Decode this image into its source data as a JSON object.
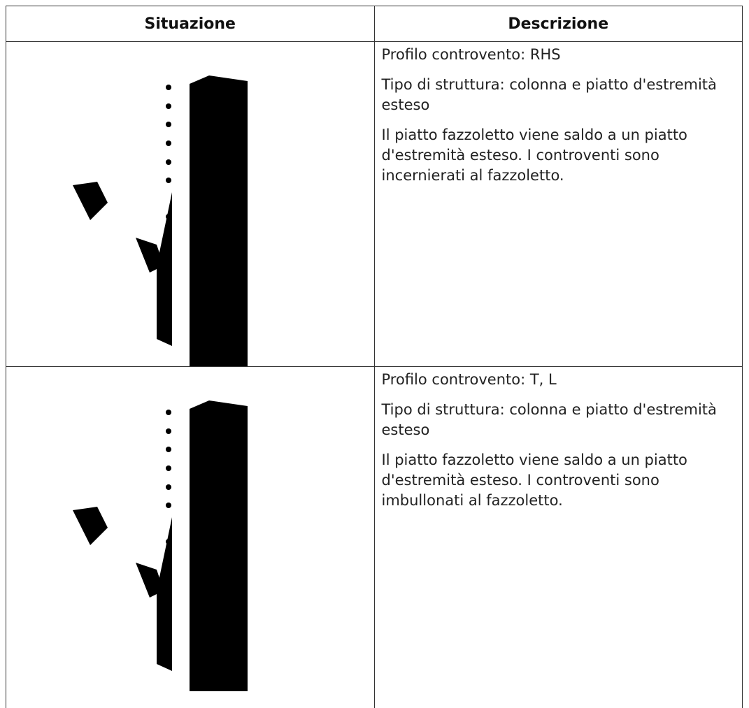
{
  "table": {
    "headers": [
      "Situazione",
      "Descrizione"
    ],
    "rows": [
      {
        "description": [
          "Profilo controvento: RHS",
          "Tipo di struttura: colonna e piatto d'estremità esteso",
          "Il piatto fazzoletto viene saldo a un piatto d'estremità esteso. I controventi sono incernierati al fazzoletto."
        ]
      },
      {
        "description": [
          "Profilo controvento: T, L",
          "Tipo di struttura: colonna e piatto d'estremità esteso",
          "Il piatto fazzoletto viene saldo a un piatto d'estremità esteso. I controventi sono imbullonati al fazzoletto."
        ]
      }
    ]
  }
}
